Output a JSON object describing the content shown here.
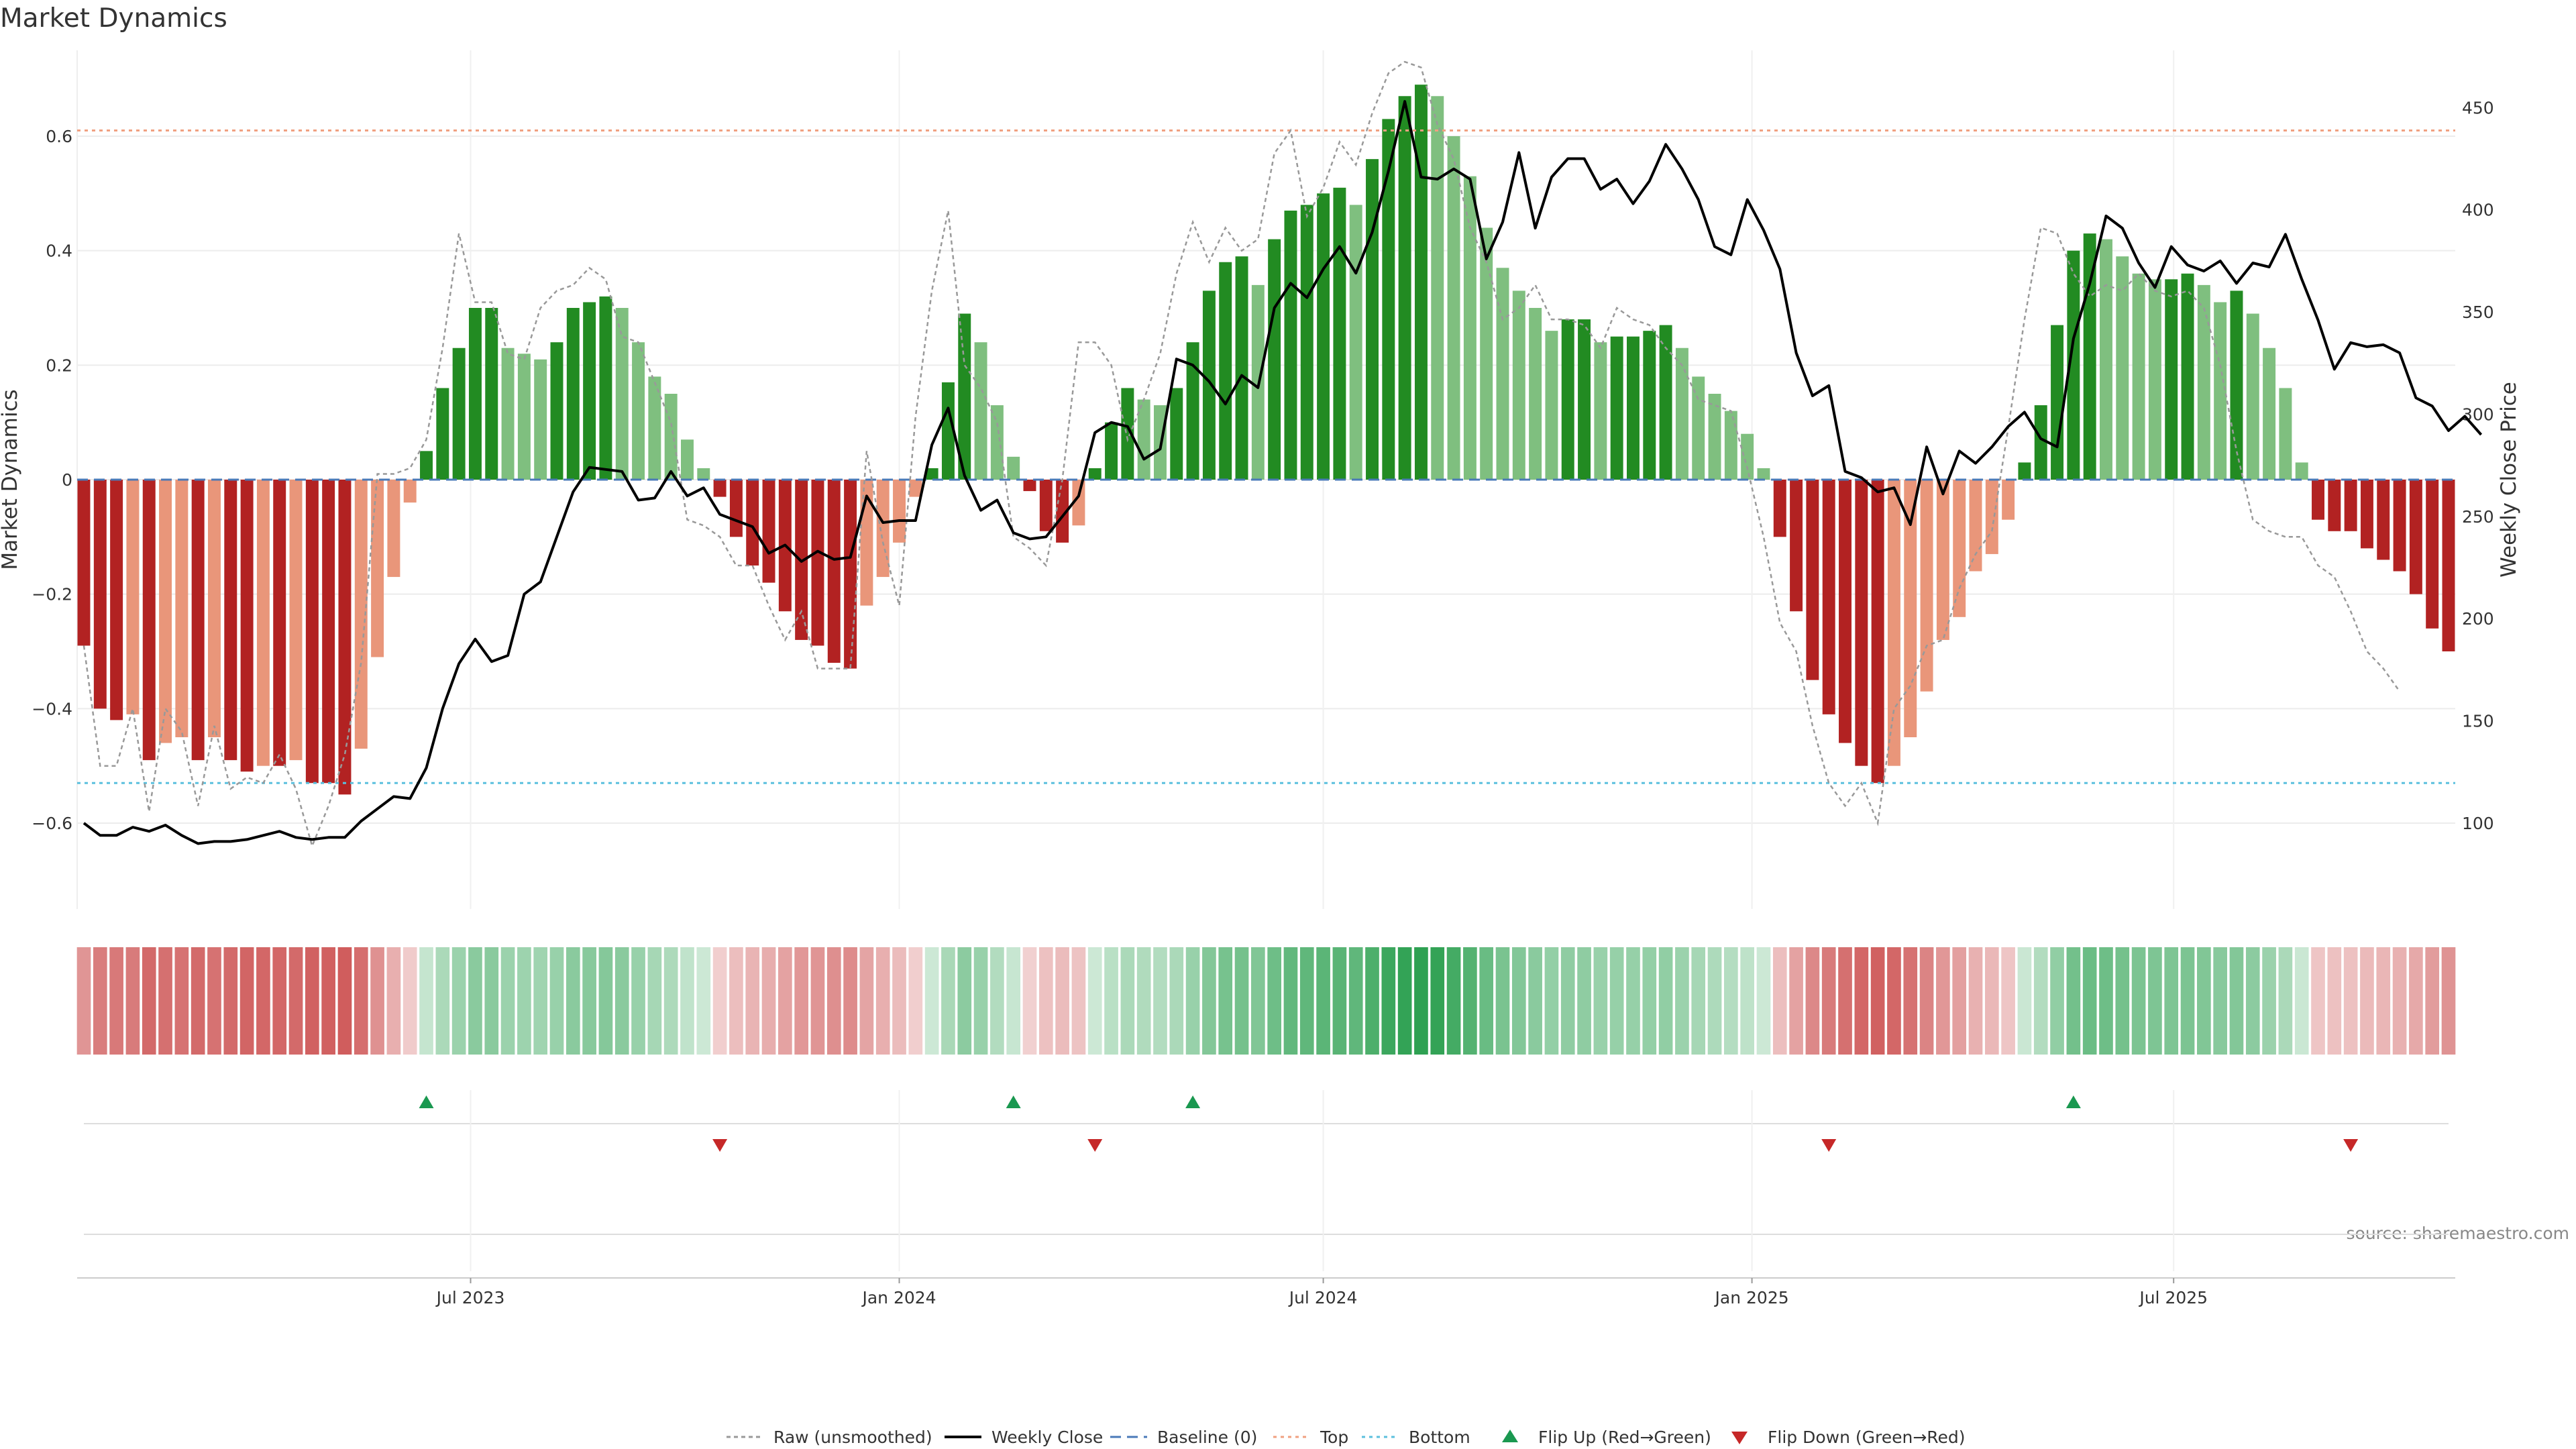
{
  "chart_data": {
    "type": "bar",
    "title": "Market Dynamics",
    "ylabel_left": "Market Dynamics",
    "ylabel_right": "Weekly Close Price",
    "source": "source: sharemaestro.com",
    "x_start": "2023-01-16",
    "x_end": "2025-10-27",
    "interval_days": 7,
    "xticks": [
      {
        "date": "2023-07-01",
        "label": "Jul 2023"
      },
      {
        "date": "2024-01-01",
        "label": "Jan 2024"
      },
      {
        "date": "2024-07-01",
        "label": "Jul 2024"
      },
      {
        "date": "2025-01-01",
        "label": "Jan 2025"
      },
      {
        "date": "2025-07-01",
        "label": "Jul 2025"
      }
    ],
    "y_left": {
      "min": -0.75,
      "max": 0.75,
      "ticks": [
        -0.6,
        -0.4,
        -0.2,
        0,
        0.2,
        0.4,
        0.6
      ],
      "tick_labels": [
        "−0.6",
        "−0.4",
        "−0.2",
        "0",
        "0.2",
        "0.4",
        "0.6"
      ]
    },
    "y_right": {
      "min": 58,
      "max": 478,
      "ticks": [
        100,
        150,
        200,
        250,
        300,
        350,
        400,
        450
      ]
    },
    "top": 0.61,
    "bottom": -0.53,
    "baseline": 0,
    "smoothed": [
      -0.29,
      -0.4,
      -0.42,
      -0.41,
      -0.49,
      -0.46,
      -0.45,
      -0.49,
      -0.45,
      -0.49,
      -0.51,
      -0.5,
      -0.5,
      -0.49,
      -0.53,
      -0.53,
      -0.55,
      -0.47,
      -0.31,
      -0.17,
      -0.04,
      0.05,
      0.16,
      0.23,
      0.3,
      0.3,
      0.23,
      0.22,
      0.21,
      0.24,
      0.3,
      0.31,
      0.32,
      0.3,
      0.24,
      0.18,
      0.15,
      0.07,
      0.02,
      -0.03,
      -0.1,
      -0.15,
      -0.18,
      -0.23,
      -0.28,
      -0.29,
      -0.32,
      -0.33,
      -0.22,
      -0.17,
      -0.11,
      -0.03,
      0.02,
      0.17,
      0.29,
      0.24,
      0.13,
      0.04,
      -0.02,
      -0.09,
      -0.11,
      -0.08,
      0.02,
      0.1,
      0.16,
      0.14,
      0.13,
      0.16,
      0.24,
      0.33,
      0.38,
      0.39,
      0.34,
      0.42,
      0.47,
      0.48,
      0.5,
      0.51,
      0.48,
      0.56,
      0.63,
      0.67,
      0.69,
      0.67,
      0.6,
      0.53,
      0.44,
      0.37,
      0.33,
      0.3,
      0.26,
      0.28,
      0.28,
      0.24,
      0.25,
      0.25,
      0.26,
      0.27,
      0.23,
      0.18,
      0.15,
      0.12,
      0.08,
      0.02,
      -0.1,
      -0.23,
      -0.35,
      -0.41,
      -0.46,
      -0.5,
      -0.53,
      -0.5,
      -0.45,
      -0.37,
      -0.28,
      -0.24,
      -0.16,
      -0.13,
      -0.07,
      0.03,
      0.13,
      0.27,
      0.4,
      0.43,
      0.42,
      0.39,
      0.36,
      0.35,
      0.35,
      0.36,
      0.34,
      0.31,
      0.33,
      0.29,
      0.23,
      0.16,
      0.03,
      -0.07,
      -0.09,
      -0.09,
      -0.12,
      -0.14,
      -0.16,
      -0.2,
      -0.26,
      -0.3
    ],
    "raw": [
      -0.29,
      -0.5,
      -0.5,
      -0.4,
      -0.58,
      -0.4,
      -0.44,
      -0.57,
      -0.43,
      -0.54,
      -0.52,
      -0.53,
      -0.48,
      -0.54,
      -0.64,
      -0.57,
      -0.48,
      -0.32,
      0.01,
      0.01,
      0.02,
      0.07,
      0.23,
      0.43,
      0.31,
      0.31,
      0.22,
      0.21,
      0.3,
      0.33,
      0.34,
      0.37,
      0.35,
      0.25,
      0.24,
      0.17,
      0.1,
      -0.07,
      -0.08,
      -0.1,
      -0.15,
      -0.15,
      -0.22,
      -0.28,
      -0.23,
      -0.33,
      -0.33,
      -0.33,
      0.05,
      -0.11,
      -0.22,
      0.11,
      0.33,
      0.47,
      0.2,
      0.16,
      0.1,
      -0.1,
      -0.12,
      -0.15,
      0,
      0.24,
      0.24,
      0.2,
      0.07,
      0.14,
      0.22,
      0.36,
      0.45,
      0.38,
      0.44,
      0.4,
      0.42,
      0.57,
      0.61,
      0.46,
      0.51,
      0.59,
      0.55,
      0.64,
      0.71,
      0.73,
      0.72,
      0.62,
      0.56,
      0.44,
      0.38,
      0.28,
      0.3,
      0.34,
      0.28,
      0.28,
      0.27,
      0.23,
      0.3,
      0.28,
      0.27,
      0.23,
      0.2,
      0.14,
      0.13,
      0.12,
      0.02,
      -0.1,
      -0.25,
      -0.3,
      -0.43,
      -0.53,
      -0.57,
      -0.53,
      -0.6,
      -0.4,
      -0.36,
      -0.29,
      -0.28,
      -0.19,
      -0.13,
      -0.09,
      0.09,
      0.28,
      0.44,
      0.43,
      0.36,
      0.32,
      0.34,
      0.33,
      0.36,
      0.33,
      0.32,
      0.33,
      0.3,
      0.2,
      0.05,
      -0.07,
      -0.09,
      -0.1,
      -0.1,
      -0.15,
      -0.17,
      -0.23,
      -0.3,
      -0.33,
      -0.37
    ],
    "price": [
      100,
      94,
      94,
      98,
      96,
      99,
      94,
      90,
      91,
      91,
      92,
      94,
      96,
      93,
      92,
      93,
      93,
      101,
      107,
      113,
      112,
      127,
      156,
      178,
      190,
      179,
      182,
      212,
      218,
      240,
      262,
      274,
      273,
      272,
      258,
      259,
      272,
      260,
      264,
      251,
      248,
      245,
      232,
      236,
      228,
      233,
      229,
      230,
      260,
      247,
      248,
      248,
      285,
      303,
      270,
      253,
      258,
      242,
      239,
      240,
      250,
      260,
      291,
      296,
      294,
      278,
      283,
      327,
      324,
      316,
      305,
      319,
      313,
      352,
      364,
      357,
      371,
      382,
      369,
      389,
      419,
      453,
      416,
      415,
      420,
      415,
      376,
      394,
      428,
      391,
      416,
      425,
      425,
      410,
      415,
      403,
      414,
      432,
      420,
      405,
      382,
      378,
      405,
      390,
      371,
      330,
      309,
      314,
      272,
      269,
      262,
      264,
      246,
      284,
      261,
      282,
      276,
      284,
      294,
      301,
      288,
      284,
      337,
      364,
      397,
      391,
      374,
      362,
      382,
      373,
      370,
      375,
      364,
      374,
      372,
      388,
      366,
      346,
      322,
      335,
      333,
      334,
      330,
      308,
      304,
      292,
      299,
      290
    ],
    "heat": [
      -0.29,
      -0.4,
      -0.42,
      -0.41,
      -0.49,
      -0.46,
      -0.45,
      -0.49,
      -0.45,
      -0.49,
      -0.51,
      -0.5,
      -0.5,
      -0.49,
      -0.53,
      -0.53,
      -0.55,
      -0.47,
      -0.31,
      -0.17,
      -0.04,
      0.05,
      0.16,
      0.23,
      0.3,
      0.3,
      0.23,
      0.22,
      0.21,
      0.24,
      0.3,
      0.31,
      0.32,
      0.3,
      0.24,
      0.18,
      0.15,
      0.07,
      0.02,
      -0.03,
      -0.1,
      -0.15,
      -0.18,
      -0.23,
      -0.28,
      -0.29,
      -0.32,
      -0.33,
      -0.22,
      -0.17,
      -0.11,
      -0.03,
      0.02,
      0.17,
      0.29,
      0.24,
      0.13,
      0.04,
      -0.02,
      -0.09,
      -0.11,
      -0.08,
      0.02,
      0.1,
      0.16,
      0.14,
      0.13,
      0.16,
      0.24,
      0.33,
      0.38,
      0.39,
      0.34,
      0.42,
      0.47,
      0.48,
      0.5,
      0.51,
      0.48,
      0.56,
      0.63,
      0.67,
      0.69,
      0.67,
      0.6,
      0.53,
      0.44,
      0.37,
      0.33,
      0.3,
      0.26,
      0.28,
      0.28,
      0.24,
      0.25,
      0.25,
      0.26,
      0.27,
      0.23,
      0.18,
      0.15,
      0.12,
      0.08,
      0.02,
      -0.1,
      -0.23,
      -0.35,
      -0.41,
      -0.46,
      -0.5,
      -0.53,
      -0.5,
      -0.45,
      -0.37,
      -0.28,
      -0.24,
      -0.16,
      -0.13,
      -0.07,
      0.03,
      0.13,
      0.27,
      0.4,
      0.43,
      0.42,
      0.39,
      0.36,
      0.35,
      0.35,
      0.36,
      0.34,
      0.31,
      0.33,
      0.29,
      0.23,
      0.16,
      0.03,
      -0.07,
      -0.09,
      -0.09,
      -0.12,
      -0.14,
      -0.16,
      -0.2,
      -0.26,
      -0.3
    ],
    "flip_up": [
      "2023-06-12",
      "2024-02-19",
      "2024-05-06",
      "2025-05-19"
    ],
    "flip_down": [
      "2023-10-16",
      "2024-03-25",
      "2025-02-03",
      "2025-09-15"
    ],
    "colors": {
      "dark_red": "#b22222",
      "light_red": "#e9967a",
      "dark_green": "#228b22",
      "light_green": "#7fbf7f",
      "raw": "#999999",
      "weekly_close": "#000000",
      "baseline": "#4a7ab8",
      "top": "#f0a080",
      "bottom": "#5bc0de",
      "flip_up": "#1a9850",
      "flip_down": "#c62828"
    },
    "legend": [
      {
        "label": "Raw (unsmoothed)",
        "kind": "raw"
      },
      {
        "label": "Weekly Close",
        "kind": "close"
      },
      {
        "label": "Baseline (0)",
        "kind": "baseline"
      },
      {
        "label": "Top",
        "kind": "top"
      },
      {
        "label": "Bottom",
        "kind": "bottom"
      },
      {
        "label": "Flip Up (Red→Green)",
        "kind": "up"
      },
      {
        "label": "Flip Down (Green→Red)",
        "kind": "down"
      }
    ]
  }
}
